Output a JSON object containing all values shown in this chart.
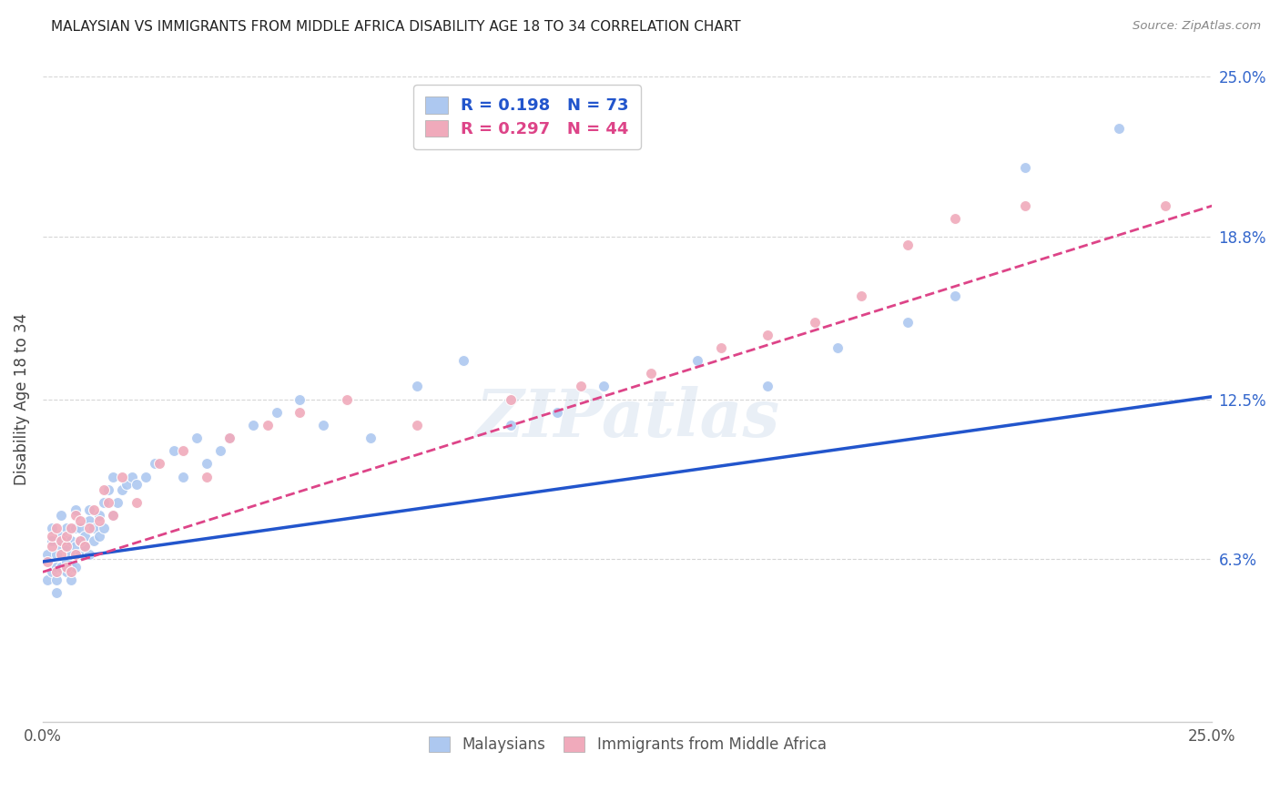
{
  "title": "MALAYSIAN VS IMMIGRANTS FROM MIDDLE AFRICA DISABILITY AGE 18 TO 34 CORRELATION CHART",
  "source": "Source: ZipAtlas.com",
  "ylabel": "Disability Age 18 to 34",
  "xlim": [
    0.0,
    0.25
  ],
  "ylim": [
    0.0,
    0.25
  ],
  "xtick_positions": [
    0.0,
    0.05,
    0.1,
    0.15,
    0.2,
    0.25
  ],
  "xticklabels": [
    "0.0%",
    "",
    "",
    "",
    "",
    "25.0%"
  ],
  "ytick_positions": [
    0.063,
    0.125,
    0.188,
    0.25
  ],
  "ytick_labels": [
    "6.3%",
    "12.5%",
    "18.8%",
    "25.0%"
  ],
  "r_malaysian": 0.198,
  "n_malaysian": 73,
  "r_immigrant": 0.297,
  "n_immigrant": 44,
  "color_malaysian": "#adc8f0",
  "color_immigrant": "#f0aabb",
  "color_malaysian_line": "#2255cc",
  "color_immigrant_line": "#dd4488",
  "watermark_text": "ZIPatlas",
  "malaysian_x": [
    0.001,
    0.001,
    0.002,
    0.002,
    0.002,
    0.003,
    0.003,
    0.003,
    0.003,
    0.004,
    0.004,
    0.004,
    0.004,
    0.005,
    0.005,
    0.005,
    0.005,
    0.005,
    0.006,
    0.006,
    0.006,
    0.006,
    0.007,
    0.007,
    0.007,
    0.007,
    0.008,
    0.008,
    0.008,
    0.009,
    0.009,
    0.01,
    0.01,
    0.01,
    0.011,
    0.011,
    0.012,
    0.012,
    0.013,
    0.013,
    0.014,
    0.015,
    0.015,
    0.016,
    0.017,
    0.018,
    0.019,
    0.02,
    0.022,
    0.024,
    0.028,
    0.03,
    0.033,
    0.035,
    0.038,
    0.04,
    0.045,
    0.05,
    0.055,
    0.06,
    0.07,
    0.08,
    0.09,
    0.1,
    0.11,
    0.12,
    0.14,
    0.155,
    0.17,
    0.185,
    0.195,
    0.21,
    0.23
  ],
  "malaysian_y": [
    0.065,
    0.055,
    0.07,
    0.058,
    0.075,
    0.065,
    0.06,
    0.055,
    0.05,
    0.068,
    0.06,
    0.072,
    0.08,
    0.062,
    0.07,
    0.058,
    0.068,
    0.075,
    0.06,
    0.065,
    0.07,
    0.055,
    0.068,
    0.075,
    0.06,
    0.082,
    0.07,
    0.065,
    0.075,
    0.068,
    0.072,
    0.078,
    0.065,
    0.082,
    0.07,
    0.075,
    0.072,
    0.08,
    0.075,
    0.085,
    0.09,
    0.08,
    0.095,
    0.085,
    0.09,
    0.092,
    0.095,
    0.092,
    0.095,
    0.1,
    0.105,
    0.095,
    0.11,
    0.1,
    0.105,
    0.11,
    0.115,
    0.12,
    0.125,
    0.115,
    0.11,
    0.13,
    0.14,
    0.115,
    0.12,
    0.13,
    0.14,
    0.13,
    0.145,
    0.155,
    0.165,
    0.215,
    0.23
  ],
  "immigrant_x": [
    0.001,
    0.002,
    0.002,
    0.003,
    0.003,
    0.004,
    0.004,
    0.005,
    0.005,
    0.005,
    0.006,
    0.006,
    0.007,
    0.007,
    0.008,
    0.008,
    0.009,
    0.01,
    0.011,
    0.012,
    0.013,
    0.014,
    0.015,
    0.017,
    0.02,
    0.025,
    0.03,
    0.035,
    0.04,
    0.048,
    0.055,
    0.065,
    0.08,
    0.1,
    0.115,
    0.13,
    0.145,
    0.155,
    0.165,
    0.175,
    0.185,
    0.195,
    0.21,
    0.24
  ],
  "immigrant_y": [
    0.062,
    0.068,
    0.072,
    0.058,
    0.075,
    0.065,
    0.07,
    0.06,
    0.068,
    0.072,
    0.058,
    0.075,
    0.065,
    0.08,
    0.07,
    0.078,
    0.068,
    0.075,
    0.082,
    0.078,
    0.09,
    0.085,
    0.08,
    0.095,
    0.085,
    0.1,
    0.105,
    0.095,
    0.11,
    0.115,
    0.12,
    0.125,
    0.115,
    0.125,
    0.13,
    0.135,
    0.145,
    0.15,
    0.155,
    0.165,
    0.185,
    0.195,
    0.2,
    0.2
  ],
  "mal_line_x": [
    0.0,
    0.25
  ],
  "mal_line_y": [
    0.062,
    0.126
  ],
  "imm_line_x": [
    0.0,
    0.25
  ],
  "imm_line_y": [
    0.058,
    0.2
  ]
}
